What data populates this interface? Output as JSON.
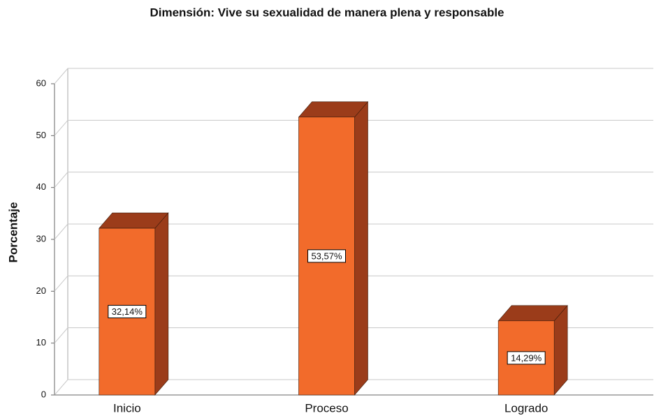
{
  "chart_data": {
    "type": "bar3d",
    "title": "Dimensión: Vive su sexualidad de manera plena y responsable",
    "y_label": "Porcentaje",
    "categories": [
      "Inicio",
      "Proceso",
      "Logrado"
    ],
    "values": [
      32.14,
      53.57,
      14.29
    ],
    "value_labels": [
      "32,14%",
      "53,57%",
      "14,29%"
    ],
    "color": "#f26b2b",
    "depth_color": "#9b3c1a",
    "ylim": [
      0,
      60
    ],
    "yticks": [
      0,
      10,
      20,
      30,
      40,
      50,
      60
    ],
    "grid": true
  }
}
